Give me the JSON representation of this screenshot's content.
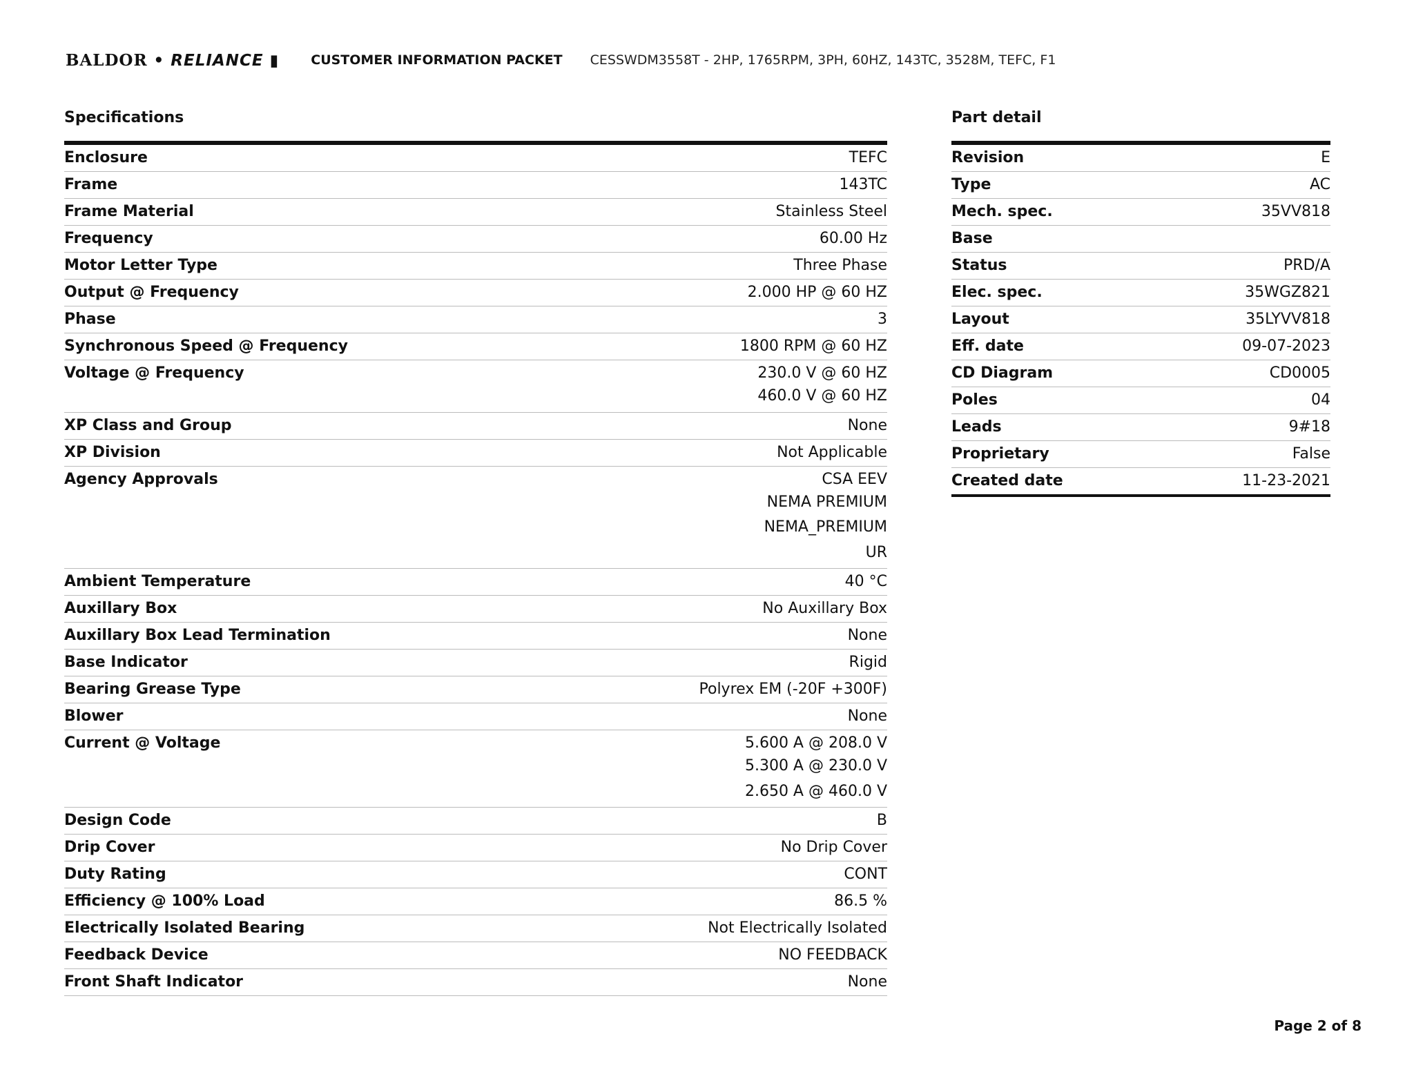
{
  "header": {
    "logo": "BALDOR • RELIANCE",
    "logo_left": "BALDOR • ",
    "logo_right": "RELIANCE",
    "packet_title": "CUSTOMER INFORMATION PACKET",
    "model": "CESSWDM3558T - 2HP, 1765RPM, 3PH, 60HZ, 143TC, 3528M, TEFC, F1"
  },
  "specifications": {
    "title": "Specifications",
    "rows": [
      {
        "label": "Enclosure",
        "values": [
          "TEFC"
        ]
      },
      {
        "label": "Frame",
        "values": [
          "143TC"
        ]
      },
      {
        "label": "Frame Material",
        "values": [
          "Stainless Steel"
        ]
      },
      {
        "label": "Frequency",
        "values": [
          "60.00 Hz"
        ]
      },
      {
        "label": "Motor Letter Type",
        "values": [
          "Three Phase"
        ]
      },
      {
        "label": "Output @ Frequency",
        "values": [
          "2.000 HP @ 60 HZ"
        ]
      },
      {
        "label": "Phase",
        "values": [
          "3"
        ]
      },
      {
        "label": "Synchronous Speed @ Frequency",
        "values": [
          "1800 RPM @ 60 HZ"
        ]
      },
      {
        "label": "Voltage @ Frequency",
        "values": [
          "230.0 V @ 60 HZ",
          "460.0 V @ 60 HZ"
        ]
      },
      {
        "label": "XP Class and Group",
        "values": [
          "None"
        ]
      },
      {
        "label": "XP Division",
        "values": [
          "Not Applicable"
        ]
      },
      {
        "label": "Agency Approvals",
        "values": [
          "CSA EEV",
          "NEMA PREMIUM",
          "NEMA_PREMIUM",
          "UR"
        ]
      },
      {
        "label": "Ambient Temperature",
        "values": [
          "40 °C"
        ]
      },
      {
        "label": "Auxillary Box",
        "values": [
          "No Auxillary Box"
        ]
      },
      {
        "label": "Auxillary Box Lead Termination",
        "values": [
          "None"
        ]
      },
      {
        "label": "Base Indicator",
        "values": [
          "Rigid"
        ]
      },
      {
        "label": "Bearing Grease Type",
        "values": [
          "Polyrex EM (-20F +300F)"
        ]
      },
      {
        "label": "Blower",
        "values": [
          "None"
        ]
      },
      {
        "label": "Current @ Voltage",
        "values": [
          "5.600 A @ 208.0 V",
          "5.300 A @ 230.0 V",
          "2.650 A @ 460.0 V"
        ]
      },
      {
        "label": "Design Code",
        "values": [
          "B"
        ]
      },
      {
        "label": "Drip Cover",
        "values": [
          "No Drip Cover"
        ]
      },
      {
        "label": "Duty Rating",
        "values": [
          "CONT"
        ]
      },
      {
        "label": "Efficiency @ 100% Load",
        "values": [
          "86.5 %"
        ]
      },
      {
        "label": "Electrically Isolated Bearing",
        "values": [
          "Not Electrically Isolated"
        ]
      },
      {
        "label": "Feedback Device",
        "values": [
          "NO FEEDBACK"
        ]
      },
      {
        "label": "Front Shaft Indicator",
        "values": [
          "None"
        ]
      }
    ]
  },
  "part_detail": {
    "title": "Part detail",
    "rows": [
      {
        "label": "Revision",
        "values": [
          "E"
        ]
      },
      {
        "label": "Type",
        "values": [
          "AC"
        ]
      },
      {
        "label": "Mech. spec.",
        "values": [
          "35VV818"
        ]
      },
      {
        "label": "Base",
        "values": [
          ""
        ]
      },
      {
        "label": "Status",
        "values": [
          "PRD/A"
        ]
      },
      {
        "label": "Elec. spec.",
        "values": [
          "35WGZ821"
        ]
      },
      {
        "label": "Layout",
        "values": [
          "35LYVV818"
        ]
      },
      {
        "label": "Eff. date",
        "values": [
          "09-07-2023"
        ]
      },
      {
        "label": "CD Diagram",
        "values": [
          "CD0005"
        ]
      },
      {
        "label": "Poles",
        "values": [
          "04"
        ]
      },
      {
        "label": "Leads",
        "values": [
          "9#18"
        ]
      },
      {
        "label": "Proprietary",
        "values": [
          "False"
        ]
      },
      {
        "label": "Created date",
        "values": [
          "11-23-2021"
        ]
      }
    ]
  },
  "footer": {
    "page": "Page 2 of 8"
  }
}
